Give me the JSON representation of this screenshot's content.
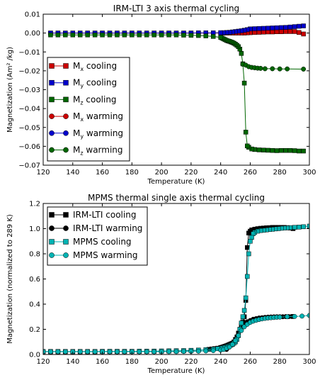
{
  "chart_data": [
    {
      "type": "line",
      "title": "IRM-LTI 3 axis thermal cycling",
      "xlabel": "Temperature (K)",
      "ylabel": "Magnetization (Am² /kg)",
      "xlim": [
        120,
        300
      ],
      "ylim": [
        -0.07,
        0.01
      ],
      "xticks": [
        "120",
        "140",
        "160",
        "180",
        "200",
        "220",
        "240",
        "260",
        "280",
        "300"
      ],
      "yticks": [
        "−0.07",
        "−0.06",
        "−0.05",
        "−0.04",
        "−0.03",
        "−0.02",
        "−0.01",
        "0.00",
        "0.01"
      ],
      "grid": false,
      "legend_position": "lower-left",
      "series": [
        {
          "name": "Mx cooling",
          "name_main": "M",
          "name_sub": "x",
          "name_rest": " cooling",
          "color": "#cc0000",
          "marker": "square",
          "x": [
            296,
            293,
            290,
            287,
            284,
            281,
            278,
            275,
            272,
            269,
            266,
            263,
            260,
            258,
            256,
            254,
            252,
            250,
            248,
            246,
            244,
            242,
            240,
            235,
            230,
            225,
            220,
            215,
            210,
            205,
            200,
            195,
            190,
            185,
            180,
            175,
            170,
            165,
            160,
            155,
            150,
            145,
            140,
            135,
            130,
            125
          ],
          "y": [
            -0.0005,
            0.0003,
            0.0008,
            0.0008,
            0.0008,
            0.0007,
            0.0007,
            0.0006,
            0.0006,
            0.0005,
            0.0004,
            0.0003,
            0.0002,
            0.0001,
            0,
            0,
            0,
            0,
            0,
            0,
            0,
            0,
            0,
            0,
            0,
            0,
            0,
            0,
            0,
            0,
            0,
            0,
            0,
            0,
            0,
            0,
            0,
            0,
            0,
            0,
            0,
            0,
            0,
            0,
            0,
            0
          ]
        },
        {
          "name": "My cooling",
          "name_main": "M",
          "name_sub": "y",
          "name_rest": " cooling",
          "color": "#0000cc",
          "marker": "square",
          "x": [
            296,
            293,
            290,
            287,
            284,
            281,
            278,
            275,
            272,
            269,
            266,
            263,
            260,
            258,
            256,
            254,
            252,
            250,
            248,
            246,
            244,
            242,
            240,
            235,
            230,
            225,
            220,
            215,
            210,
            205,
            200,
            195,
            190,
            185,
            180,
            175,
            170,
            165,
            160,
            155,
            150,
            145,
            140,
            135,
            130,
            125
          ],
          "y": [
            0.0038,
            0.0036,
            0.0034,
            0.0032,
            0.003,
            0.0029,
            0.0028,
            0.0027,
            0.0026,
            0.0025,
            0.0024,
            0.0023,
            0.0022,
            0.0018,
            0.0015,
            0.0012,
            0.001,
            0.0008,
            0.0006,
            0.0004,
            0.0003,
            0.0002,
            0.0002,
            0.0001,
            0.0001,
            0.0001,
            0,
            0,
            0,
            0,
            0,
            0,
            0,
            0,
            0,
            0,
            0,
            0,
            0,
            0,
            0,
            0,
            0,
            0,
            0,
            0
          ]
        },
        {
          "name": "Mz cooling",
          "name_main": "M",
          "name_sub": "z",
          "name_rest": " cooling",
          "color": "#006600",
          "marker": "square",
          "x": [
            296,
            293,
            290,
            287,
            284,
            281,
            278,
            275,
            272,
            269,
            266,
            263,
            261,
            259,
            258,
            257,
            256,
            255,
            254,
            253,
            252,
            251,
            250,
            249,
            248,
            247,
            246,
            245,
            244,
            243,
            242,
            241,
            240,
            235,
            230,
            225,
            220,
            215,
            210,
            205,
            200,
            195,
            190,
            185,
            180,
            175,
            170,
            165,
            160,
            155,
            150,
            145,
            140,
            135,
            130,
            125
          ],
          "y": [
            -0.0625,
            -0.0625,
            -0.0623,
            -0.0622,
            -0.0622,
            -0.0622,
            -0.0623,
            -0.0622,
            -0.0621,
            -0.062,
            -0.0619,
            -0.0617,
            -0.0614,
            -0.0605,
            -0.0598,
            -0.0525,
            -0.0265,
            -0.0163,
            -0.0108,
            -0.0085,
            -0.0072,
            -0.0065,
            -0.0059,
            -0.0054,
            -0.005,
            -0.0047,
            -0.0044,
            -0.0042,
            -0.0039,
            -0.0035,
            -0.0031,
            -0.0027,
            -0.0023,
            -0.0018,
            -0.0015,
            -0.0013,
            -0.0012,
            -0.0011,
            -0.001,
            -0.001,
            -0.001,
            -0.001,
            -0.001,
            -0.001,
            -0.001,
            -0.001,
            -0.001,
            -0.001,
            -0.001,
            -0.001,
            -0.001,
            -0.001,
            -0.001,
            -0.001,
            -0.001,
            -0.001
          ]
        },
        {
          "name": "Mx warming",
          "name_main": "M",
          "name_sub": "x",
          "name_rest": " warming",
          "color": "#cc0000",
          "marker": "circle",
          "x": [],
          "y": []
        },
        {
          "name": "My warming",
          "name_main": "M",
          "name_sub": "y",
          "name_rest": " warming",
          "color": "#0000cc",
          "marker": "circle",
          "x": [],
          "y": []
        },
        {
          "name": "Mz warming",
          "name_main": "M",
          "name_sub": "z",
          "name_rest": " warming",
          "color": "#006600",
          "marker": "circle",
          "x": [
            255,
            257,
            259,
            261,
            263,
            265,
            267,
            270,
            275,
            280,
            285,
            296
          ],
          "y": [
            -0.0165,
            -0.017,
            -0.0178,
            -0.0182,
            -0.0184,
            -0.0186,
            -0.0187,
            -0.0189,
            -0.0189,
            -0.019,
            -0.019,
            -0.0191
          ]
        }
      ]
    },
    {
      "type": "line",
      "title": "MPMS thermal single axis thermal cycling",
      "xlabel": "Temperature (K)",
      "ylabel": "Magnetization (normalized to 289 K)",
      "xlim": [
        120,
        300
      ],
      "ylim": [
        0.0,
        1.2
      ],
      "xticks": [
        "120",
        "140",
        "160",
        "180",
        "200",
        "220",
        "240",
        "260",
        "280",
        "300"
      ],
      "yticks": [
        "0.0",
        "0.2",
        "0.4",
        "0.6",
        "0.8",
        "1.0",
        "1.2"
      ],
      "grid": false,
      "legend_position": "upper-left",
      "series": [
        {
          "name": "IRM-LTI cooling",
          "color": "#000000",
          "marker": "square",
          "x": [
            289,
            287,
            285,
            283,
            281,
            279,
            277,
            275,
            273,
            271,
            269,
            267,
            265,
            263,
            261,
            260,
            259,
            258,
            257,
            256,
            255,
            254,
            253,
            252,
            251,
            250,
            249,
            248,
            247,
            246,
            245,
            244,
            243,
            242,
            241,
            240,
            238,
            236,
            234,
            232,
            230,
            225,
            220,
            215,
            210,
            205,
            200,
            195,
            190,
            185,
            180,
            175,
            170,
            165,
            160,
            155,
            150,
            145,
            140,
            135,
            130,
            125,
            120
          ],
          "y": [
            1.0,
            1.005,
            1.008,
            1.01,
            1.01,
            1.01,
            1.01,
            1.01,
            1.008,
            1.007,
            1.005,
            1.003,
            1.0,
            0.996,
            0.99,
            0.98,
            0.965,
            0.85,
            0.43,
            0.3,
            0.26,
            0.23,
            0.2,
            0.17,
            0.14,
            0.12,
            0.1,
            0.09,
            0.085,
            0.08,
            0.075,
            0.07,
            0.066,
            0.062,
            0.058,
            0.055,
            0.05,
            0.047,
            0.044,
            0.041,
            0.038,
            0.034,
            0.031,
            0.029,
            0.028,
            0.027,
            0.026,
            0.025,
            0.025,
            0.024,
            0.024,
            0.023,
            0.023,
            0.023,
            0.023,
            0.022,
            0.022,
            0.022,
            0.022,
            0.022,
            0.022,
            0.022,
            0.022
          ]
        },
        {
          "name": "IRM-LTI warming",
          "color": "#000000",
          "marker": "circle",
          "x": [
            244,
            246,
            248,
            250,
            252,
            254,
            256,
            258,
            260,
            262,
            264,
            266,
            268,
            270,
            272,
            274,
            276,
            278,
            280,
            282,
            284,
            286,
            288,
            289
          ],
          "y": [
            0.04,
            0.06,
            0.08,
            0.11,
            0.16,
            0.21,
            0.24,
            0.26,
            0.27,
            0.28,
            0.285,
            0.29,
            0.292,
            0.295,
            0.297,
            0.298,
            0.299,
            0.3,
            0.3,
            0.3,
            0.301,
            0.301,
            0.302,
            0.302
          ]
        },
        {
          "name": "MPMS cooling",
          "color": "#00b3b3",
          "marker": "square",
          "x": [
            300,
            296,
            293,
            290,
            287,
            285,
            283,
            281,
            279,
            277,
            275,
            273,
            271,
            269,
            267,
            265,
            263,
            262,
            261,
            260,
            259,
            258,
            257,
            256,
            255,
            254,
            253,
            252,
            251,
            250,
            249,
            248,
            247,
            246,
            245,
            244,
            242,
            240,
            238,
            235,
            230,
            225,
            220,
            215,
            210,
            205,
            200,
            195,
            190,
            185,
            180,
            175,
            170,
            165,
            160,
            155,
            150,
            145,
            140,
            135,
            130,
            125,
            120
          ],
          "y": [
            1.02,
            1.015,
            1.012,
            1.01,
            1.008,
            1.006,
            1.005,
            1.003,
            1.0,
            0.998,
            0.995,
            0.993,
            0.99,
            0.987,
            0.985,
            0.98,
            0.97,
            0.96,
            0.93,
            0.9,
            0.8,
            0.62,
            0.45,
            0.35,
            0.3,
            0.25,
            0.2,
            0.15,
            0.12,
            0.1,
            0.09,
            0.08,
            0.075,
            0.07,
            0.065,
            0.06,
            0.055,
            0.05,
            0.046,
            0.042,
            0.038,
            0.035,
            0.033,
            0.031,
            0.03,
            0.029,
            0.028,
            0.027,
            0.026,
            0.026,
            0.025,
            0.025,
            0.025,
            0.025,
            0.025,
            0.024,
            0.024,
            0.024,
            0.024,
            0.024,
            0.024,
            0.024,
            0.024
          ]
        },
        {
          "name": "MPMS warming",
          "color": "#00b3b3",
          "marker": "circle",
          "x": [
            120,
            125,
            130,
            135,
            140,
            145,
            150,
            155,
            160,
            165,
            170,
            175,
            180,
            185,
            190,
            195,
            200,
            205,
            210,
            215,
            220,
            225,
            230,
            235,
            240,
            242,
            244,
            246,
            248,
            250,
            252,
            254,
            256,
            258,
            260,
            262,
            264,
            266,
            268,
            270,
            272,
            274,
            276,
            278,
            280,
            285,
            290,
            295,
            300
          ],
          "y": [
            0.022,
            0.022,
            0.022,
            0.022,
            0.022,
            0.022,
            0.022,
            0.022,
            0.022,
            0.022,
            0.022,
            0.022,
            0.022,
            0.022,
            0.022,
            0.022,
            0.022,
            0.023,
            0.023,
            0.024,
            0.025,
            0.026,
            0.028,
            0.031,
            0.035,
            0.04,
            0.05,
            0.06,
            0.08,
            0.11,
            0.15,
            0.19,
            0.22,
            0.24,
            0.255,
            0.265,
            0.272,
            0.278,
            0.283,
            0.287,
            0.29,
            0.292,
            0.294,
            0.296,
            0.297,
            0.3,
            0.302,
            0.305,
            0.31
          ]
        }
      ]
    }
  ]
}
